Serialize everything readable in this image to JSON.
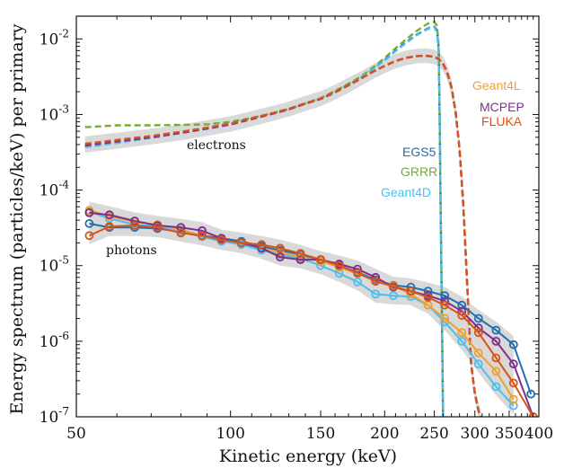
{
  "chart_data": {
    "type": "line",
    "xlabel": "Kinetic energy (keV)",
    "ylabel": "Energy spectrum (particles/keV) per primary",
    "xscale": "log",
    "yscale": "log",
    "xlim": [
      50,
      400
    ],
    "ylim": [
      1e-07,
      0.02
    ],
    "xticks": [
      50,
      100,
      150,
      200,
      250,
      300,
      350,
      400
    ],
    "xtick_labels": [
      "50",
      "100",
      "150",
      "200",
      "250",
      "300",
      "350",
      "400"
    ],
    "yticks": [
      1e-07,
      1e-06,
      1e-05,
      0.0001,
      0.001,
      0.01
    ],
    "ytick_bases": [
      "10",
      "10",
      "10",
      "10",
      "10",
      "10"
    ],
    "ytick_exps": [
      "-7",
      "-6",
      "-5",
      "-4",
      "-3",
      "-2"
    ],
    "annotations": {
      "electrons": "electrons",
      "photons": "photons",
      "geant4l": "Geant4L",
      "mcpep": "MCPEP",
      "fluka": "FLUKA",
      "egs5": "EGS5",
      "grrr": "GRRR",
      "geant4d": "Geant4D"
    },
    "colors": {
      "EGS5": "#1f6fb0",
      "GRRR": "#77ac30",
      "Geant4D": "#4dbeee",
      "Geant4L": "#f0a030",
      "MCPEP": "#7e2f8e",
      "FLUKA": "#d95319",
      "band": "#d9d9d9"
    },
    "electron_series": [
      {
        "name": "GRRR",
        "style": "dashed",
        "x": [
          52,
          60,
          70,
          80,
          90,
          100,
          110,
          120,
          130,
          140,
          150,
          160,
          170,
          180,
          190,
          200,
          210,
          220,
          230,
          240,
          245,
          250,
          253,
          255,
          256,
          257,
          258,
          259,
          260
        ],
        "y": [
          0.00068,
          0.00072,
          0.00072,
          0.00073,
          0.00074,
          0.0008,
          0.0009,
          0.00103,
          0.00118,
          0.0014,
          0.00165,
          0.00205,
          0.00255,
          0.0032,
          0.0042,
          0.0056,
          0.0075,
          0.0098,
          0.0125,
          0.0152,
          0.0164,
          0.0168,
          0.015,
          0.008,
          0.001,
          0.0001,
          1e-05,
          1e-06,
          1e-07
        ]
      },
      {
        "name": "EGS5",
        "style": "dashed",
        "x": [
          52,
          60,
          70,
          80,
          90,
          100,
          110,
          120,
          130,
          140,
          150,
          160,
          170,
          180,
          190,
          200,
          210,
          220,
          230,
          240,
          245,
          250,
          253,
          255,
          256,
          257,
          258,
          259,
          260
        ],
        "y": [
          0.00038,
          0.00043,
          0.0005,
          0.00058,
          0.00066,
          0.00075,
          0.00088,
          0.00102,
          0.00118,
          0.0014,
          0.00162,
          0.002,
          0.0025,
          0.0031,
          0.004,
          0.0053,
          0.007,
          0.009,
          0.0112,
          0.0132,
          0.0142,
          0.0145,
          0.013,
          0.007,
          0.001,
          0.0001,
          1e-05,
          1e-06,
          1e-07
        ]
      },
      {
        "name": "Geant4D",
        "style": "dashed",
        "x": [
          52,
          60,
          70,
          80,
          90,
          100,
          110,
          120,
          130,
          140,
          150,
          160,
          170,
          180,
          190,
          200,
          210,
          220,
          230,
          240,
          245,
          250,
          253,
          255,
          256,
          257,
          258,
          259,
          260
        ],
        "y": [
          0.00037,
          0.00042,
          0.00049,
          0.00057,
          0.00065,
          0.00074,
          0.00087,
          0.00101,
          0.00117,
          0.00139,
          0.00161,
          0.00198,
          0.00248,
          0.0031,
          0.004,
          0.0052,
          0.0069,
          0.0088,
          0.011,
          0.013,
          0.0139,
          0.0141,
          0.0125,
          0.0068,
          0.001,
          0.0001,
          1e-05,
          1e-06,
          1e-07
        ]
      },
      {
        "name": "Geant4L",
        "style": "dashed",
        "x": [
          52,
          60,
          70,
          80,
          90,
          100,
          110,
          120,
          130,
          140,
          150,
          160,
          170,
          180,
          190,
          200,
          210,
          220,
          230,
          240,
          250,
          255,
          260,
          265,
          270,
          275,
          280,
          285,
          290,
          295,
          300,
          303,
          305,
          308
        ],
        "y": [
          0.0004,
          0.00045,
          0.00051,
          0.00058,
          0.00066,
          0.00075,
          0.00088,
          0.00102,
          0.00118,
          0.0014,
          0.00162,
          0.00198,
          0.00245,
          0.003,
          0.0037,
          0.0044,
          0.0051,
          0.0056,
          0.0059,
          0.006,
          0.0058,
          0.0054,
          0.0047,
          0.0036,
          0.0023,
          0.0011,
          0.00035,
          6e-05,
          5e-06,
          5e-07,
          2e-07,
          1.5e-07,
          1.2e-07,
          1e-07
        ]
      },
      {
        "name": "MCPEP",
        "style": "dashed",
        "x": [
          52,
          60,
          70,
          80,
          90,
          100,
          110,
          120,
          130,
          140,
          150,
          160,
          170,
          180,
          190,
          200,
          210,
          220,
          230,
          240,
          250,
          255,
          260,
          265,
          270,
          275,
          280,
          285,
          290,
          295,
          300,
          303,
          305,
          308
        ],
        "y": [
          0.00039,
          0.00044,
          0.0005,
          0.00057,
          0.00065,
          0.00074,
          0.00087,
          0.00101,
          0.00117,
          0.00139,
          0.00161,
          0.00196,
          0.00243,
          0.003,
          0.0037,
          0.0044,
          0.0051,
          0.0056,
          0.0059,
          0.006,
          0.0058,
          0.0054,
          0.0047,
          0.0036,
          0.0023,
          0.0011,
          0.00035,
          6e-05,
          5e-06,
          5e-07,
          2e-07,
          1.5e-07,
          1.2e-07,
          1e-07
        ]
      },
      {
        "name": "FLUKA",
        "style": "dashed",
        "x": [
          52,
          60,
          70,
          80,
          90,
          100,
          110,
          120,
          130,
          140,
          150,
          160,
          170,
          180,
          190,
          200,
          210,
          220,
          230,
          240,
          250,
          255,
          260,
          265,
          270,
          275,
          280,
          285,
          290,
          295,
          300,
          303,
          305,
          308
        ],
        "y": [
          0.00041,
          0.00046,
          0.00052,
          0.00059,
          0.00067,
          0.00076,
          0.00089,
          0.00103,
          0.00119,
          0.00141,
          0.00163,
          0.00199,
          0.00246,
          0.003,
          0.0037,
          0.0044,
          0.0051,
          0.0056,
          0.0059,
          0.006,
          0.0058,
          0.0054,
          0.0047,
          0.0036,
          0.0023,
          0.0011,
          0.00035,
          6e-05,
          5e-06,
          5e-07,
          2e-07,
          1.5e-07,
          1.2e-07,
          1e-07
        ]
      }
    ],
    "photon_series": [
      {
        "name": "EGS5",
        "x": [
          53,
          58,
          65,
          72,
          80,
          88,
          96,
          105,
          115,
          125,
          137,
          150,
          163,
          177,
          192,
          208,
          225,
          243,
          262,
          283,
          305,
          330,
          357,
          386
        ],
        "y": [
          3.6e-05,
          3.2e-05,
          3.2e-05,
          3.1e-05,
          2.8e-05,
          2.5e-05,
          2.3e-05,
          2.1e-05,
          1.8e-05,
          1.6e-05,
          1.4e-05,
          1.2e-05,
          1e-05,
          8.2e-06,
          6.5e-06,
          5.5e-06,
          5.2e-06,
          4.6e-06,
          4e-06,
          3e-06,
          2e-06,
          1.4e-06,
          9e-07,
          2e-07
        ]
      },
      {
        "name": "Geant4D",
        "x": [
          53,
          58,
          65,
          72,
          80,
          88,
          96,
          105,
          115,
          125,
          137,
          150,
          163,
          177,
          192,
          208,
          225,
          243,
          262,
          283,
          305,
          330,
          357
        ],
        "y": [
          5.2e-05,
          4.2e-05,
          3.5e-05,
          3.3e-05,
          2.8e-05,
          2.4e-05,
          2.1e-05,
          1.9e-05,
          1.6e-05,
          1.4e-05,
          1.25e-05,
          1e-05,
          7.9e-06,
          6.1e-06,
          4.2e-06,
          4e-06,
          3.9e-06,
          3e-06,
          1.8e-06,
          1e-06,
          5e-07,
          2.5e-07,
          1.4e-07
        ]
      },
      {
        "name": "Geant4L",
        "x": [
          53,
          58,
          65,
          72,
          80,
          88,
          96,
          105,
          115,
          125,
          137,
          150,
          163,
          177,
          192,
          208,
          225,
          243,
          262,
          283,
          305,
          330,
          357
        ],
        "y": [
          5.4e-05,
          4.5e-05,
          3.8e-05,
          3.5e-05,
          3e-05,
          2.5e-05,
          2.2e-05,
          2e-05,
          1.7e-05,
          1.5e-05,
          1.3e-05,
          1.15e-05,
          9.5e-06,
          7.8e-06,
          6.3e-06,
          5.4e-06,
          4.2e-06,
          3e-06,
          2e-06,
          1.3e-06,
          7e-07,
          4e-07,
          1.7e-07
        ]
      },
      {
        "name": "MCPEP",
        "x": [
          53,
          58,
          65,
          72,
          80,
          88,
          96,
          105,
          115,
          125,
          137,
          150,
          163,
          177,
          192,
          208,
          225,
          243,
          262,
          283,
          305,
          330,
          357,
          390
        ],
        "y": [
          5e-05,
          4.7e-05,
          3.9e-05,
          3.4e-05,
          3.2e-05,
          2.9e-05,
          2.3e-05,
          2e-05,
          1.7e-05,
          1.3e-05,
          1.2e-05,
          1.2e-05,
          1.05e-05,
          9e-06,
          7e-06,
          5.2e-06,
          4.6e-06,
          4e-06,
          3.4e-06,
          2.5e-06,
          1.5e-06,
          1e-06,
          5e-07,
          1e-07
        ]
      },
      {
        "name": "FLUKA",
        "x": [
          53,
          58,
          65,
          72,
          80,
          88,
          96,
          105,
          115,
          125,
          137,
          150,
          163,
          177,
          192,
          208,
          225,
          243,
          262,
          283,
          305,
          330,
          357,
          390
        ],
        "y": [
          2.5e-05,
          3.3e-05,
          3.4e-05,
          3.2e-05,
          2.7e-05,
          2.5e-05,
          2.2e-05,
          2e-05,
          1.9e-05,
          1.7e-05,
          1.45e-05,
          1.2e-05,
          1e-05,
          8e-06,
          6.2e-06,
          5.3e-06,
          4.6e-06,
          3.8e-06,
          3e-06,
          2.2e-06,
          1.3e-06,
          6e-07,
          2.8e-07,
          1e-07
        ]
      }
    ]
  }
}
